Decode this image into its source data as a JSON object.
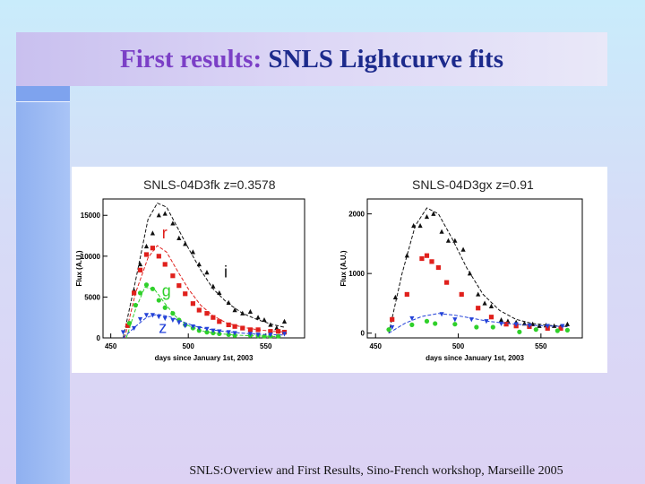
{
  "slide": {
    "title_part1": "First results:",
    "title_part2": "SNLS Lightcurve fits",
    "footer": "SNLS:Overview and First Results, Sino-French workshop, Marseille 2005"
  },
  "colors": {
    "title_part1": "#7b3fc6",
    "title_part2": "#1c2a8c",
    "band_r": "#e0201c",
    "band_g": "#2fd02a",
    "band_z": "#2342d8",
    "band_i": "#111111"
  },
  "chart_data": [
    {
      "type": "scatter",
      "title": "SNLS-04D3fk z=0.3578",
      "xlabel": "days since January 1st, 2003",
      "ylabel": "Flux (A.U.)",
      "xlim": [
        445,
        575
      ],
      "ylim": [
        0,
        17000
      ],
      "x_ticks": [
        450,
        500,
        550
      ],
      "y_ticks": [
        0,
        5000,
        10000,
        15000
      ],
      "band_labels": [
        {
          "text": "r",
          "color": "#e0201c",
          "x": 483,
          "y": 12200
        },
        {
          "text": "g",
          "color": "#2fd02a",
          "x": 483,
          "y": 5100
        },
        {
          "text": "i",
          "color": "#111111",
          "x": 523,
          "y": 7400
        },
        {
          "text": "z",
          "color": "#2342d8",
          "x": 481,
          "y": 600
        }
      ],
      "series": [
        {
          "band": "i",
          "marker": "triangle",
          "color": "#111111",
          "points": [
            [
              461,
              1500
            ],
            [
              465,
              5800
            ],
            [
              469,
              9000
            ],
            [
              473,
              11200
            ],
            [
              477,
              12800
            ],
            [
              481,
              15000
            ],
            [
              485,
              15200
            ],
            [
              490,
              14000
            ],
            [
              494,
              12200
            ],
            [
              498,
              11500
            ],
            [
              503,
              10500
            ],
            [
              507,
              9000
            ],
            [
              512,
              8000
            ],
            [
              516,
              6300
            ],
            [
              520,
              5500
            ],
            [
              526,
              4300
            ],
            [
              530,
              3400
            ],
            [
              535,
              3000
            ],
            [
              540,
              3200
            ],
            [
              545,
              2500
            ],
            [
              549,
              2200
            ],
            [
              553,
              1600
            ],
            [
              557,
              1200
            ],
            [
              562,
              2000
            ]
          ],
          "curve": [
            [
              458,
              0
            ],
            [
              466,
              7000
            ],
            [
              474,
              14500
            ],
            [
              480,
              16500
            ],
            [
              486,
              16000
            ],
            [
              493,
              13500
            ],
            [
              500,
              11000
            ],
            [
              508,
              8300
            ],
            [
              516,
              6000
            ],
            [
              525,
              4300
            ],
            [
              535,
              3000
            ],
            [
              545,
              2200
            ],
            [
              555,
              1600
            ],
            [
              562,
              1300
            ]
          ]
        },
        {
          "band": "r",
          "marker": "square",
          "color": "#e0201c",
          "points": [
            [
              461,
              1500
            ],
            [
              465,
              5500
            ],
            [
              469,
              8300
            ],
            [
              473,
              10200
            ],
            [
              477,
              11000
            ],
            [
              481,
              10000
            ],
            [
              485,
              9000
            ],
            [
              490,
              7600
            ],
            [
              494,
              6400
            ],
            [
              498,
              5400
            ],
            [
              503,
              4200
            ],
            [
              507,
              3400
            ],
            [
              512,
              3000
            ],
            [
              516,
              2500
            ],
            [
              520,
              2000
            ],
            [
              526,
              1600
            ],
            [
              530,
              1400
            ],
            [
              535,
              1200
            ],
            [
              540,
              1000
            ],
            [
              545,
              1000
            ],
            [
              553,
              800
            ],
            [
              558,
              800
            ],
            [
              562,
              700
            ]
          ],
          "curve": [
            [
              459,
              0
            ],
            [
              466,
              5500
            ],
            [
              474,
              9800
            ],
            [
              480,
              11300
            ],
            [
              486,
              10500
            ],
            [
              493,
              8200
            ],
            [
              500,
              6000
            ],
            [
              508,
              4000
            ],
            [
              516,
              2700
            ],
            [
              525,
              1800
            ],
            [
              535,
              1300
            ],
            [
              545,
              1000
            ],
            [
              555,
              800
            ],
            [
              562,
              750
            ]
          ]
        },
        {
          "band": "g",
          "marker": "circle",
          "color": "#2fd02a",
          "points": [
            [
              462,
              1800
            ],
            [
              466,
              4000
            ],
            [
              469,
              5500
            ],
            [
              473,
              6500
            ],
            [
              477,
              6000
            ],
            [
              481,
              4600
            ],
            [
              485,
              3700
            ],
            [
              490,
              3000
            ],
            [
              494,
              2200
            ],
            [
              498,
              1600
            ],
            [
              503,
              1200
            ],
            [
              507,
              900
            ],
            [
              512,
              700
            ],
            [
              516,
              600
            ],
            [
              520,
              500
            ],
            [
              526,
              400
            ],
            [
              530,
              300
            ],
            [
              540,
              300
            ],
            [
              545,
              250
            ],
            [
              549,
              200
            ],
            [
              553,
              200
            ],
            [
              558,
              200
            ]
          ],
          "curve": [
            [
              460,
              0
            ],
            [
              466,
              3500
            ],
            [
              472,
              6200
            ],
            [
              478,
              6000
            ],
            [
              485,
              4200
            ],
            [
              492,
              2600
            ],
            [
              500,
              1500
            ],
            [
              510,
              800
            ],
            [
              520,
              500
            ],
            [
              535,
              300
            ],
            [
              550,
              200
            ],
            [
              560,
              150
            ]
          ]
        },
        {
          "band": "z",
          "marker": "triangle-down",
          "color": "#2342d8",
          "points": [
            [
              458,
              700
            ],
            [
              465,
              1200
            ],
            [
              469,
              2300
            ],
            [
              473,
              2800
            ],
            [
              477,
              2800
            ],
            [
              481,
              2600
            ],
            [
              485,
              2400
            ],
            [
              490,
              2200
            ],
            [
              494,
              1900
            ],
            [
              498,
              1500
            ],
            [
              503,
              1400
            ],
            [
              507,
              1200
            ],
            [
              512,
              1100
            ],
            [
              516,
              900
            ],
            [
              520,
              800
            ],
            [
              526,
              700
            ],
            [
              530,
              600
            ],
            [
              540,
              500
            ],
            [
              545,
              400
            ],
            [
              553,
              400
            ],
            [
              562,
              500
            ]
          ],
          "curve": [
            [
              458,
              0
            ],
            [
              466,
              1400
            ],
            [
              473,
              2500
            ],
            [
              480,
              2900
            ],
            [
              488,
              2600
            ],
            [
              496,
              2000
            ],
            [
              505,
              1400
            ],
            [
              515,
              1000
            ],
            [
              527,
              700
            ],
            [
              540,
              500
            ],
            [
              552,
              400
            ],
            [
              562,
              350
            ]
          ]
        }
      ]
    },
    {
      "type": "scatter",
      "title": "SNLS-04D3gx z=0.91",
      "xlabel": "days since January 1st, 2003",
      "ylabel": "Flux (A.U.)",
      "xlim": [
        445,
        575
      ],
      "ylim": [
        -80,
        2250
      ],
      "x_ticks": [
        450,
        500,
        550
      ],
      "y_ticks": [
        0,
        1000,
        2000
      ],
      "band_labels": [],
      "series": [
        {
          "band": "i",
          "marker": "triangle",
          "color": "#111111",
          "points": [
            [
              462,
              600
            ],
            [
              469,
              1300
            ],
            [
              473,
              1800
            ],
            [
              477,
              1800
            ],
            [
              481,
              1950
            ],
            [
              485,
              2000
            ],
            [
              490,
              1700
            ],
            [
              494,
              1550
            ],
            [
              498,
              1550
            ],
            [
              503,
              1400
            ],
            [
              507,
              1000
            ],
            [
              512,
              650
            ],
            [
              516,
              500
            ],
            [
              520,
              450
            ],
            [
              526,
              220
            ],
            [
              530,
              200
            ],
            [
              535,
              180
            ],
            [
              540,
              160
            ],
            [
              545,
              150
            ],
            [
              549,
              120
            ],
            [
              553,
              130
            ],
            [
              558,
              120
            ],
            [
              562,
              110
            ],
            [
              566,
              150
            ]
          ],
          "curve": [
            [
              458,
              0
            ],
            [
              466,
              1000
            ],
            [
              474,
              1800
            ],
            [
              481,
              2100
            ],
            [
              488,
              2000
            ],
            [
              496,
              1600
            ],
            [
              505,
              1100
            ],
            [
              515,
              650
            ],
            [
              525,
              380
            ],
            [
              535,
              230
            ],
            [
              545,
              160
            ],
            [
              555,
              130
            ],
            [
              566,
              110
            ]
          ]
        },
        {
          "band": "r",
          "marker": "square",
          "color": "#e0201c",
          "points": [
            [
              460,
              230
            ],
            [
              469,
              650
            ],
            [
              478,
              1250
            ],
            [
              481,
              1300
            ],
            [
              484,
              1200
            ],
            [
              488,
              1100
            ],
            [
              493,
              850
            ],
            [
              502,
              650
            ],
            [
              512,
              420
            ],
            [
              520,
              270
            ],
            [
              529,
              150
            ],
            [
              535,
              120
            ],
            [
              543,
              110
            ],
            [
              554,
              80
            ],
            [
              562,
              80
            ]
          ],
          "curve": []
        },
        {
          "band": "g",
          "marker": "circle",
          "color": "#2fd02a",
          "points": [
            [
              458,
              60
            ],
            [
              472,
              140
            ],
            [
              481,
              200
            ],
            [
              486,
              160
            ],
            [
              498,
              150
            ],
            [
              511,
              100
            ],
            [
              521,
              100
            ],
            [
              537,
              20
            ],
            [
              547,
              60
            ],
            [
              560,
              40
            ],
            [
              566,
              50
            ]
          ],
          "curve": []
        },
        {
          "band": "z",
          "marker": "triangle-down",
          "color": "#2342d8",
          "points": [
            [
              460,
              100
            ],
            [
              472,
              250
            ],
            [
              490,
              320
            ],
            [
              498,
              230
            ],
            [
              508,
              230
            ],
            [
              517,
              200
            ],
            [
              526,
              160
            ],
            [
              535,
              150
            ],
            [
              543,
              130
            ],
            [
              554,
              120
            ],
            [
              563,
              120
            ]
          ],
          "curve": [
            [
              458,
              0
            ],
            [
              468,
              170
            ],
            [
              478,
              280
            ],
            [
              488,
              330
            ],
            [
              498,
              300
            ],
            [
              508,
              250
            ],
            [
              518,
              200
            ],
            [
              530,
              160
            ],
            [
              545,
              130
            ],
            [
              560,
              115
            ],
            [
              566,
              110
            ]
          ]
        }
      ]
    }
  ]
}
